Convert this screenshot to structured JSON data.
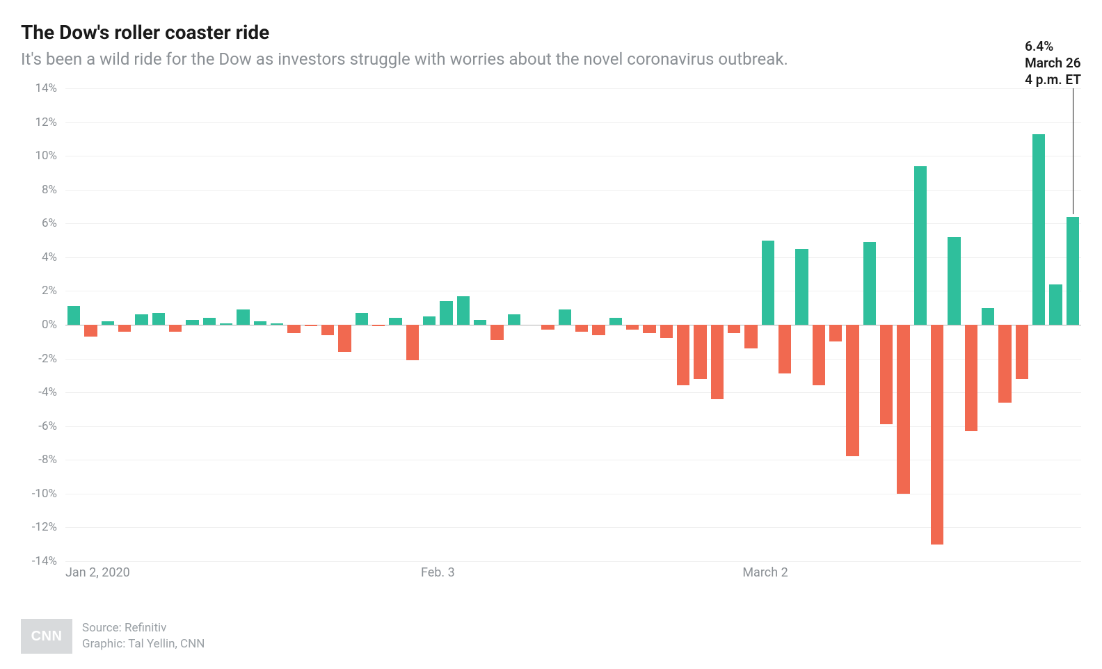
{
  "title": "The Dow's roller coaster ride",
  "subtitle": "It's been a wild ride for the Dow as investors struggle with worries about the novel coronavirus outbreak.",
  "chart": {
    "type": "bar",
    "positive_color": "#2fbf9c",
    "negative_color": "#f16950",
    "grid_color": "#f0f0f0",
    "zero_line_color": "#b0b0b0",
    "background_color": "#ffffff",
    "ylim": [
      -14,
      14
    ],
    "ytick_step": 2,
    "y_tick_fontsize": 17,
    "y_tick_color": "#8a8f94",
    "bar_gap_ratio": 0.24,
    "values": [
      1.1,
      -0.7,
      0.2,
      -0.4,
      0.6,
      0.7,
      -0.4,
      0.3,
      0.4,
      0.1,
      0.9,
      0.2,
      0.1,
      -0.5,
      -0.1,
      -0.6,
      -1.6,
      0.7,
      -0.1,
      0.4,
      -2.1,
      0.5,
      1.4,
      1.7,
      0.3,
      -0.9,
      0.6,
      0.0,
      -0.3,
      0.9,
      -0.4,
      -0.6,
      0.4,
      -0.3,
      -0.5,
      -0.8,
      -3.6,
      -3.2,
      -4.4,
      -0.5,
      -1.4,
      5.0,
      -2.9,
      4.5,
      -3.6,
      -1.0,
      -7.8,
      4.9,
      -5.9,
      -10.0,
      9.4,
      -13.0,
      5.2,
      -6.3,
      1.0,
      -4.6,
      -3.2,
      11.3,
      2.4,
      6.4
    ],
    "x_ticks": [
      {
        "index": 0,
        "label": "Jan 2, 2020"
      },
      {
        "index": 21,
        "label": "Feb. 3"
      },
      {
        "index": 40,
        "label": "March 2"
      }
    ],
    "x_tick_fontsize": 18,
    "x_tick_color": "#8a8f94",
    "annotation": {
      "index": 59,
      "lines": [
        "6.4%",
        "March 26",
        "4 p.m. ET"
      ],
      "fontsize": 19,
      "color": "#1a1a1a"
    }
  },
  "footer": {
    "badge_text": "CNN",
    "badge_bg": "#d8dadc",
    "badge_fg": "#ffffff",
    "source_line": "Source: Refinitiv",
    "graphic_line": "Graphic: Tal Yellin, CNN",
    "credit_color": "#9aa0a5",
    "credit_fontsize": 17
  }
}
